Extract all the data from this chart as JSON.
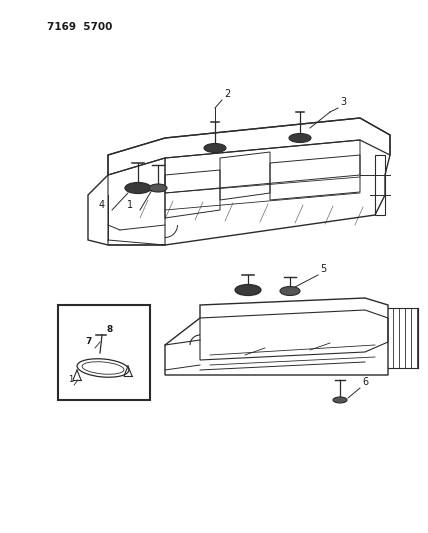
{
  "title": "7169  5700",
  "bg_color": "#ffffff",
  "line_color": "#2a2a2a",
  "text_color": "#1a1a1a",
  "fig_width": 4.28,
  "fig_height": 5.33,
  "dpi": 100
}
